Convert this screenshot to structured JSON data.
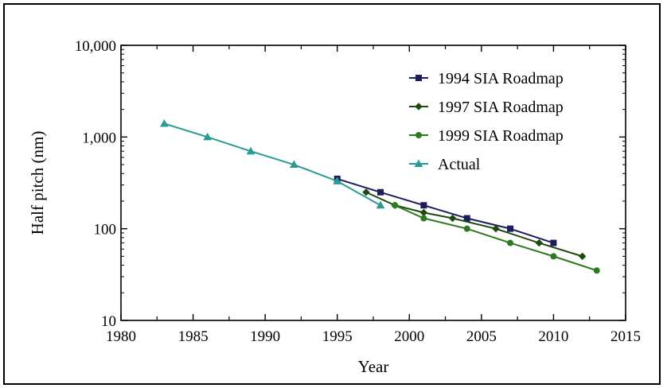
{
  "chart_data": {
    "type": "line",
    "title": "",
    "xlabel": "Year",
    "ylabel": "Half pitch  (nm)",
    "xlim": [
      1980,
      2015
    ],
    "ylim": [
      10,
      10000
    ],
    "y_scale": "log",
    "grid": false,
    "legend_position": "top-right",
    "x_ticks": [
      1980,
      1985,
      1990,
      1995,
      2000,
      2005,
      2010,
      2015
    ],
    "x_tick_labels": [
      "1980",
      "1985",
      "1990",
      "1995",
      "2000",
      "2005",
      "2010",
      "2015"
    ],
    "y_ticks": [
      10,
      100,
      1000,
      10000
    ],
    "y_tick_labels": [
      "10",
      "100",
      "1,000",
      "10,000"
    ],
    "series": [
      {
        "name": "1994 SIA Roadmap",
        "color": "#1c1c5e",
        "marker": "square",
        "x": [
          1995,
          1998,
          2001,
          2004,
          2007,
          2010
        ],
        "y": [
          350,
          250,
          180,
          130,
          100,
          70
        ]
      },
      {
        "name": "1997 SIA Roadmap",
        "color": "#1f4a0f",
        "marker": "diamond",
        "x": [
          1997,
          1999,
          2001,
          2003,
          2006,
          2009,
          2012
        ],
        "y": [
          250,
          180,
          150,
          130,
          100,
          70,
          50
        ]
      },
      {
        "name": "1999 SIA Roadmap",
        "color": "#2c7a1e",
        "marker": "circle",
        "x": [
          1999,
          2001,
          2004,
          2007,
          2010,
          2013
        ],
        "y": [
          180,
          130,
          100,
          70,
          50,
          35
        ]
      },
      {
        "name": "Actual",
        "color": "#2a9a94",
        "marker": "triangle",
        "x": [
          1983,
          1986,
          1989,
          1992,
          1995,
          1998
        ],
        "y": [
          1400,
          1000,
          700,
          500,
          330,
          180
        ]
      }
    ]
  }
}
